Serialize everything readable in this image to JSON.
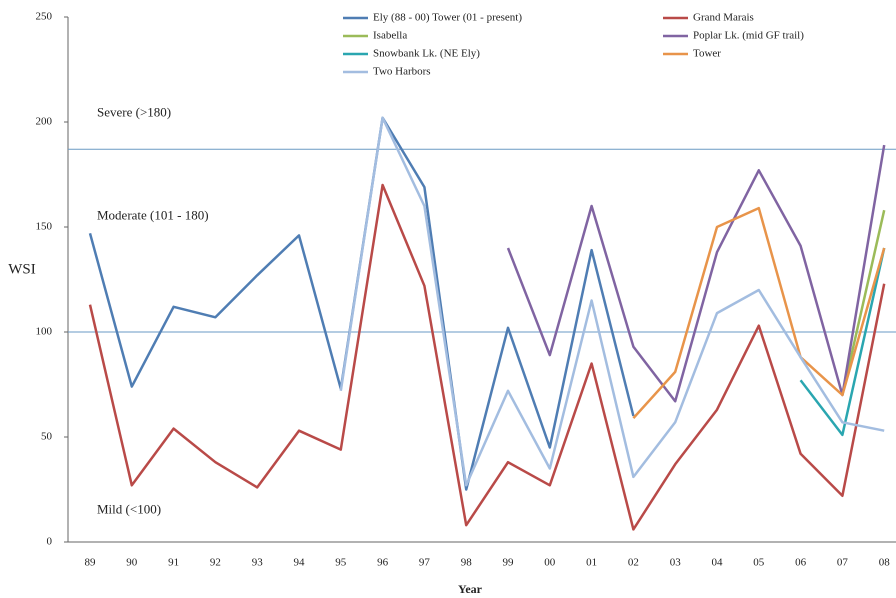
{
  "chart_data": {
    "type": "line",
    "x_label": "Year",
    "y_label": "WSI",
    "categories": [
      "89",
      "90",
      "91",
      "92",
      "93",
      "94",
      "95",
      "96",
      "97",
      "98",
      "99",
      "00",
      "01",
      "02",
      "03",
      "04",
      "05",
      "06",
      "07",
      "08"
    ],
    "series": [
      {
        "name": "Ely (88 - 00) Tower (01 - present)",
        "color": "#4f7db3",
        "values": [
          147,
          74,
          112,
          107,
          127,
          146,
          73,
          202,
          169,
          25,
          102,
          45,
          139,
          60,
          null,
          null,
          null,
          null,
          null,
          null
        ]
      },
      {
        "name": "Grand Marais",
        "color": "#b94a48",
        "values": [
          113,
          27,
          54,
          38,
          26,
          53,
          44,
          170,
          122,
          8,
          38,
          27,
          85,
          6,
          37,
          63,
          103,
          42,
          22,
          123
        ]
      },
      {
        "name": "Isabella",
        "color": "#9bbb59",
        "values": [
          null,
          null,
          null,
          null,
          null,
          null,
          null,
          null,
          null,
          null,
          null,
          null,
          null,
          null,
          null,
          null,
          null,
          null,
          70,
          158
        ]
      },
      {
        "name": "Poplar Lk. (mid GF trail)",
        "color": "#8064a2",
        "values": [
          null,
          null,
          null,
          null,
          null,
          null,
          null,
          null,
          null,
          null,
          140,
          89,
          160,
          93,
          67,
          138,
          177,
          141,
          70,
          189
        ]
      },
      {
        "name": "Snowbank Lk. (NE Ely)",
        "color": "#2aa6b0",
        "values": [
          null,
          null,
          null,
          null,
          null,
          null,
          null,
          null,
          null,
          null,
          null,
          null,
          null,
          null,
          null,
          null,
          null,
          77,
          51,
          140
        ]
      },
      {
        "name": "Tower",
        "color": "#e8944a",
        "values": [
          null,
          null,
          null,
          null,
          null,
          null,
          null,
          null,
          null,
          null,
          null,
          null,
          null,
          59,
          81,
          150,
          159,
          88,
          70,
          140
        ]
      },
      {
        "name": "Two Harbors",
        "color": "#a3bde0",
        "values": [
          null,
          null,
          null,
          null,
          null,
          null,
          72,
          202,
          160,
          27,
          72,
          35,
          115,
          31,
          57,
          109,
          120,
          88,
          57,
          53
        ]
      }
    ],
    "reference_lines": [
      187,
      100
    ],
    "annotations": [
      {
        "text": "Severe (>180)",
        "y": 204
      },
      {
        "text": "Moderate (101 - 180)",
        "y": 155
      },
      {
        "text": "Mild (<100)",
        "y": 15
      }
    ],
    "ylim": [
      0,
      250
    ],
    "yticks": [
      0,
      50,
      100,
      150,
      200,
      250
    ]
  }
}
